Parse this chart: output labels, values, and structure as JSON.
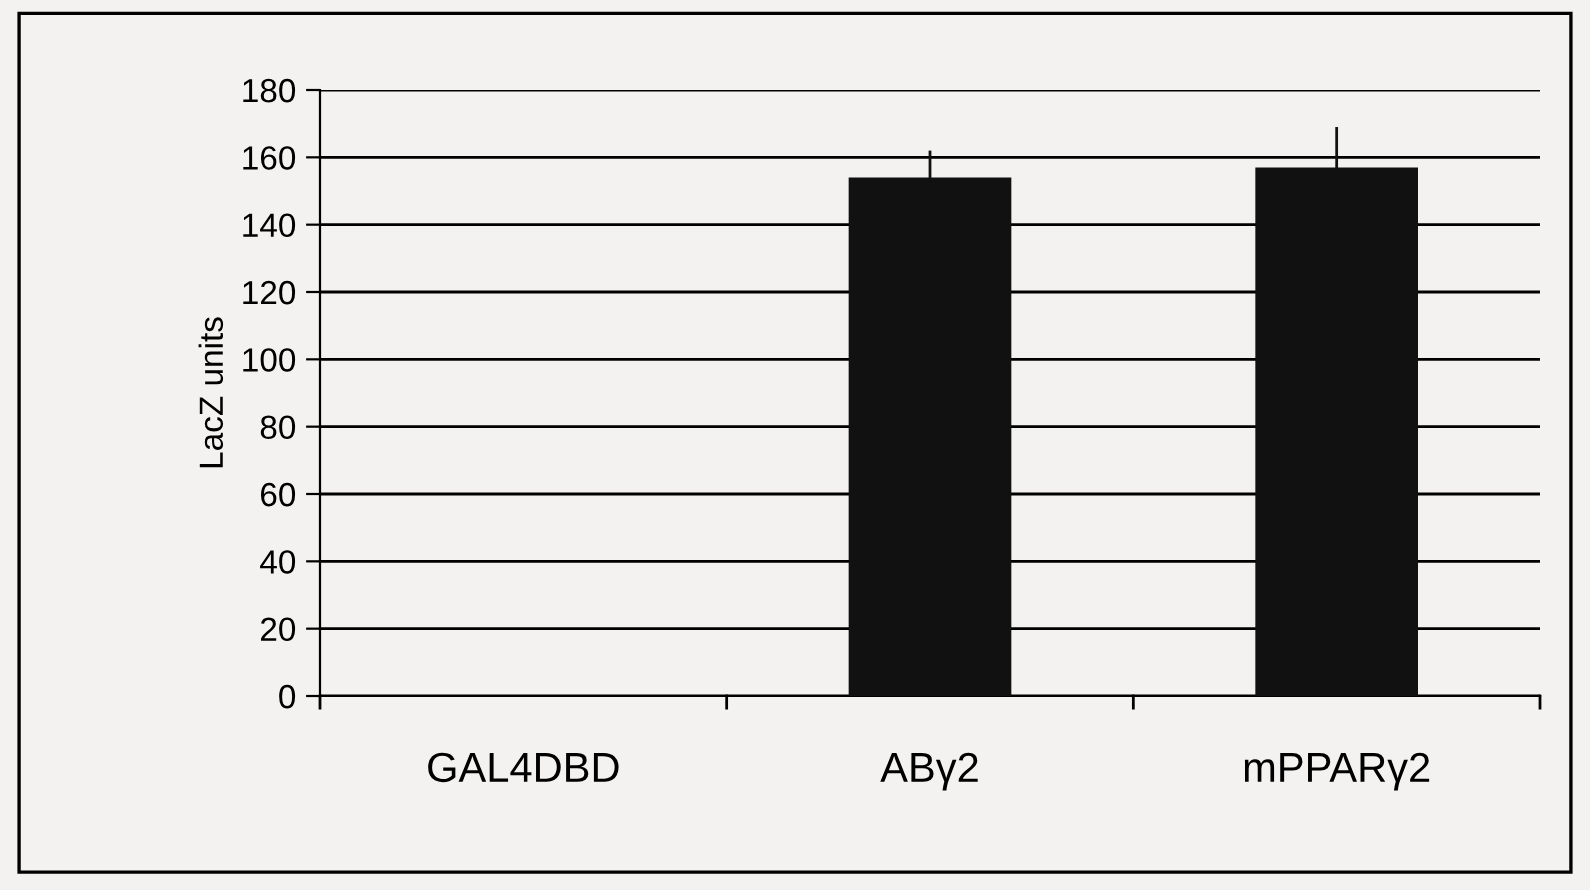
{
  "chart_data": {
    "type": "bar",
    "ylabel": "LacZ units",
    "categories": [
      "GAL4DBD",
      "ABγ2",
      "mPPARγ2"
    ],
    "values": [
      0,
      154,
      157
    ],
    "errors": [
      null,
      8,
      12
    ],
    "color": "#111111",
    "ylim": [
      0,
      180
    ],
    "yticks": [
      0,
      20,
      40,
      60,
      80,
      100,
      120,
      140,
      160,
      180
    ],
    "grid": "y",
    "legend": false
  }
}
